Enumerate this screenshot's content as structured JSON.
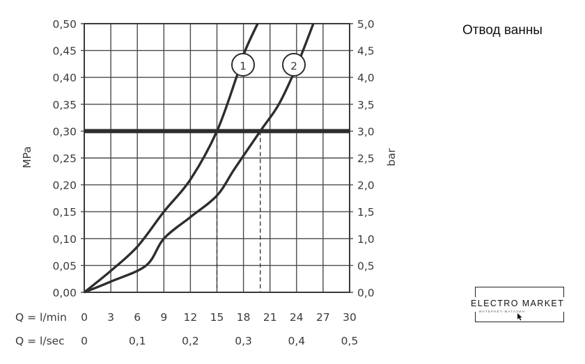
{
  "caption": "Отвод ванны",
  "logo": {
    "name": "ELECTRO MARKET",
    "tagline": "ИНТЕРНЕТ-МАГАЗИН"
  },
  "chart_data": {
    "type": "line",
    "xlabel": "Q = l/min",
    "x_secondary_label": "Q = l/sec",
    "ylabel": "MPa",
    "y_secondary_label": "bar",
    "xlim": [
      0,
      30
    ],
    "ylim": [
      0,
      0.5
    ],
    "x_ticks": [
      "0",
      "3",
      "6",
      "9",
      "12",
      "15",
      "18",
      "21",
      "24",
      "27",
      "30"
    ],
    "x_secondary_ticks": [
      "0",
      "0,1",
      "0,2",
      "0,3",
      "0,4",
      "0,5"
    ],
    "x_secondary_tick_values_lmin": [
      0,
      6,
      12,
      18,
      24,
      30
    ],
    "y_ticks": [
      "0,00",
      "0,05",
      "0,10",
      "0,15",
      "0,20",
      "0,25",
      "0,30",
      "0,35",
      "0,40",
      "0,45",
      "0,50"
    ],
    "y_secondary_ticks": [
      "0,0",
      "0,5",
      "1,0",
      "1,5",
      "2,0",
      "2,5",
      "3,0",
      "3,5",
      "4,0",
      "4,5",
      "5,0"
    ],
    "grid": true,
    "reference_line": {
      "y": 0.3
    },
    "series": [
      {
        "name": "1",
        "x": [
          0,
          3,
          6,
          9,
          12,
          15,
          17.2,
          18.2,
          19.6
        ],
        "y": [
          0,
          0.04,
          0.085,
          0.15,
          0.21,
          0.3,
          0.4,
          0.45,
          0.5
        ],
        "marker_at_y": 0.3,
        "marker_x": 15
      },
      {
        "name": "2",
        "x": [
          0,
          3,
          7,
          9,
          12,
          15,
          17,
          19.9,
          22,
          24,
          25.9
        ],
        "y": [
          0,
          0.02,
          0.05,
          0.1,
          0.14,
          0.18,
          0.23,
          0.3,
          0.35,
          0.42,
          0.5
        ],
        "marker_at_y": 0.3,
        "marker_x": 19.9
      }
    ]
  }
}
